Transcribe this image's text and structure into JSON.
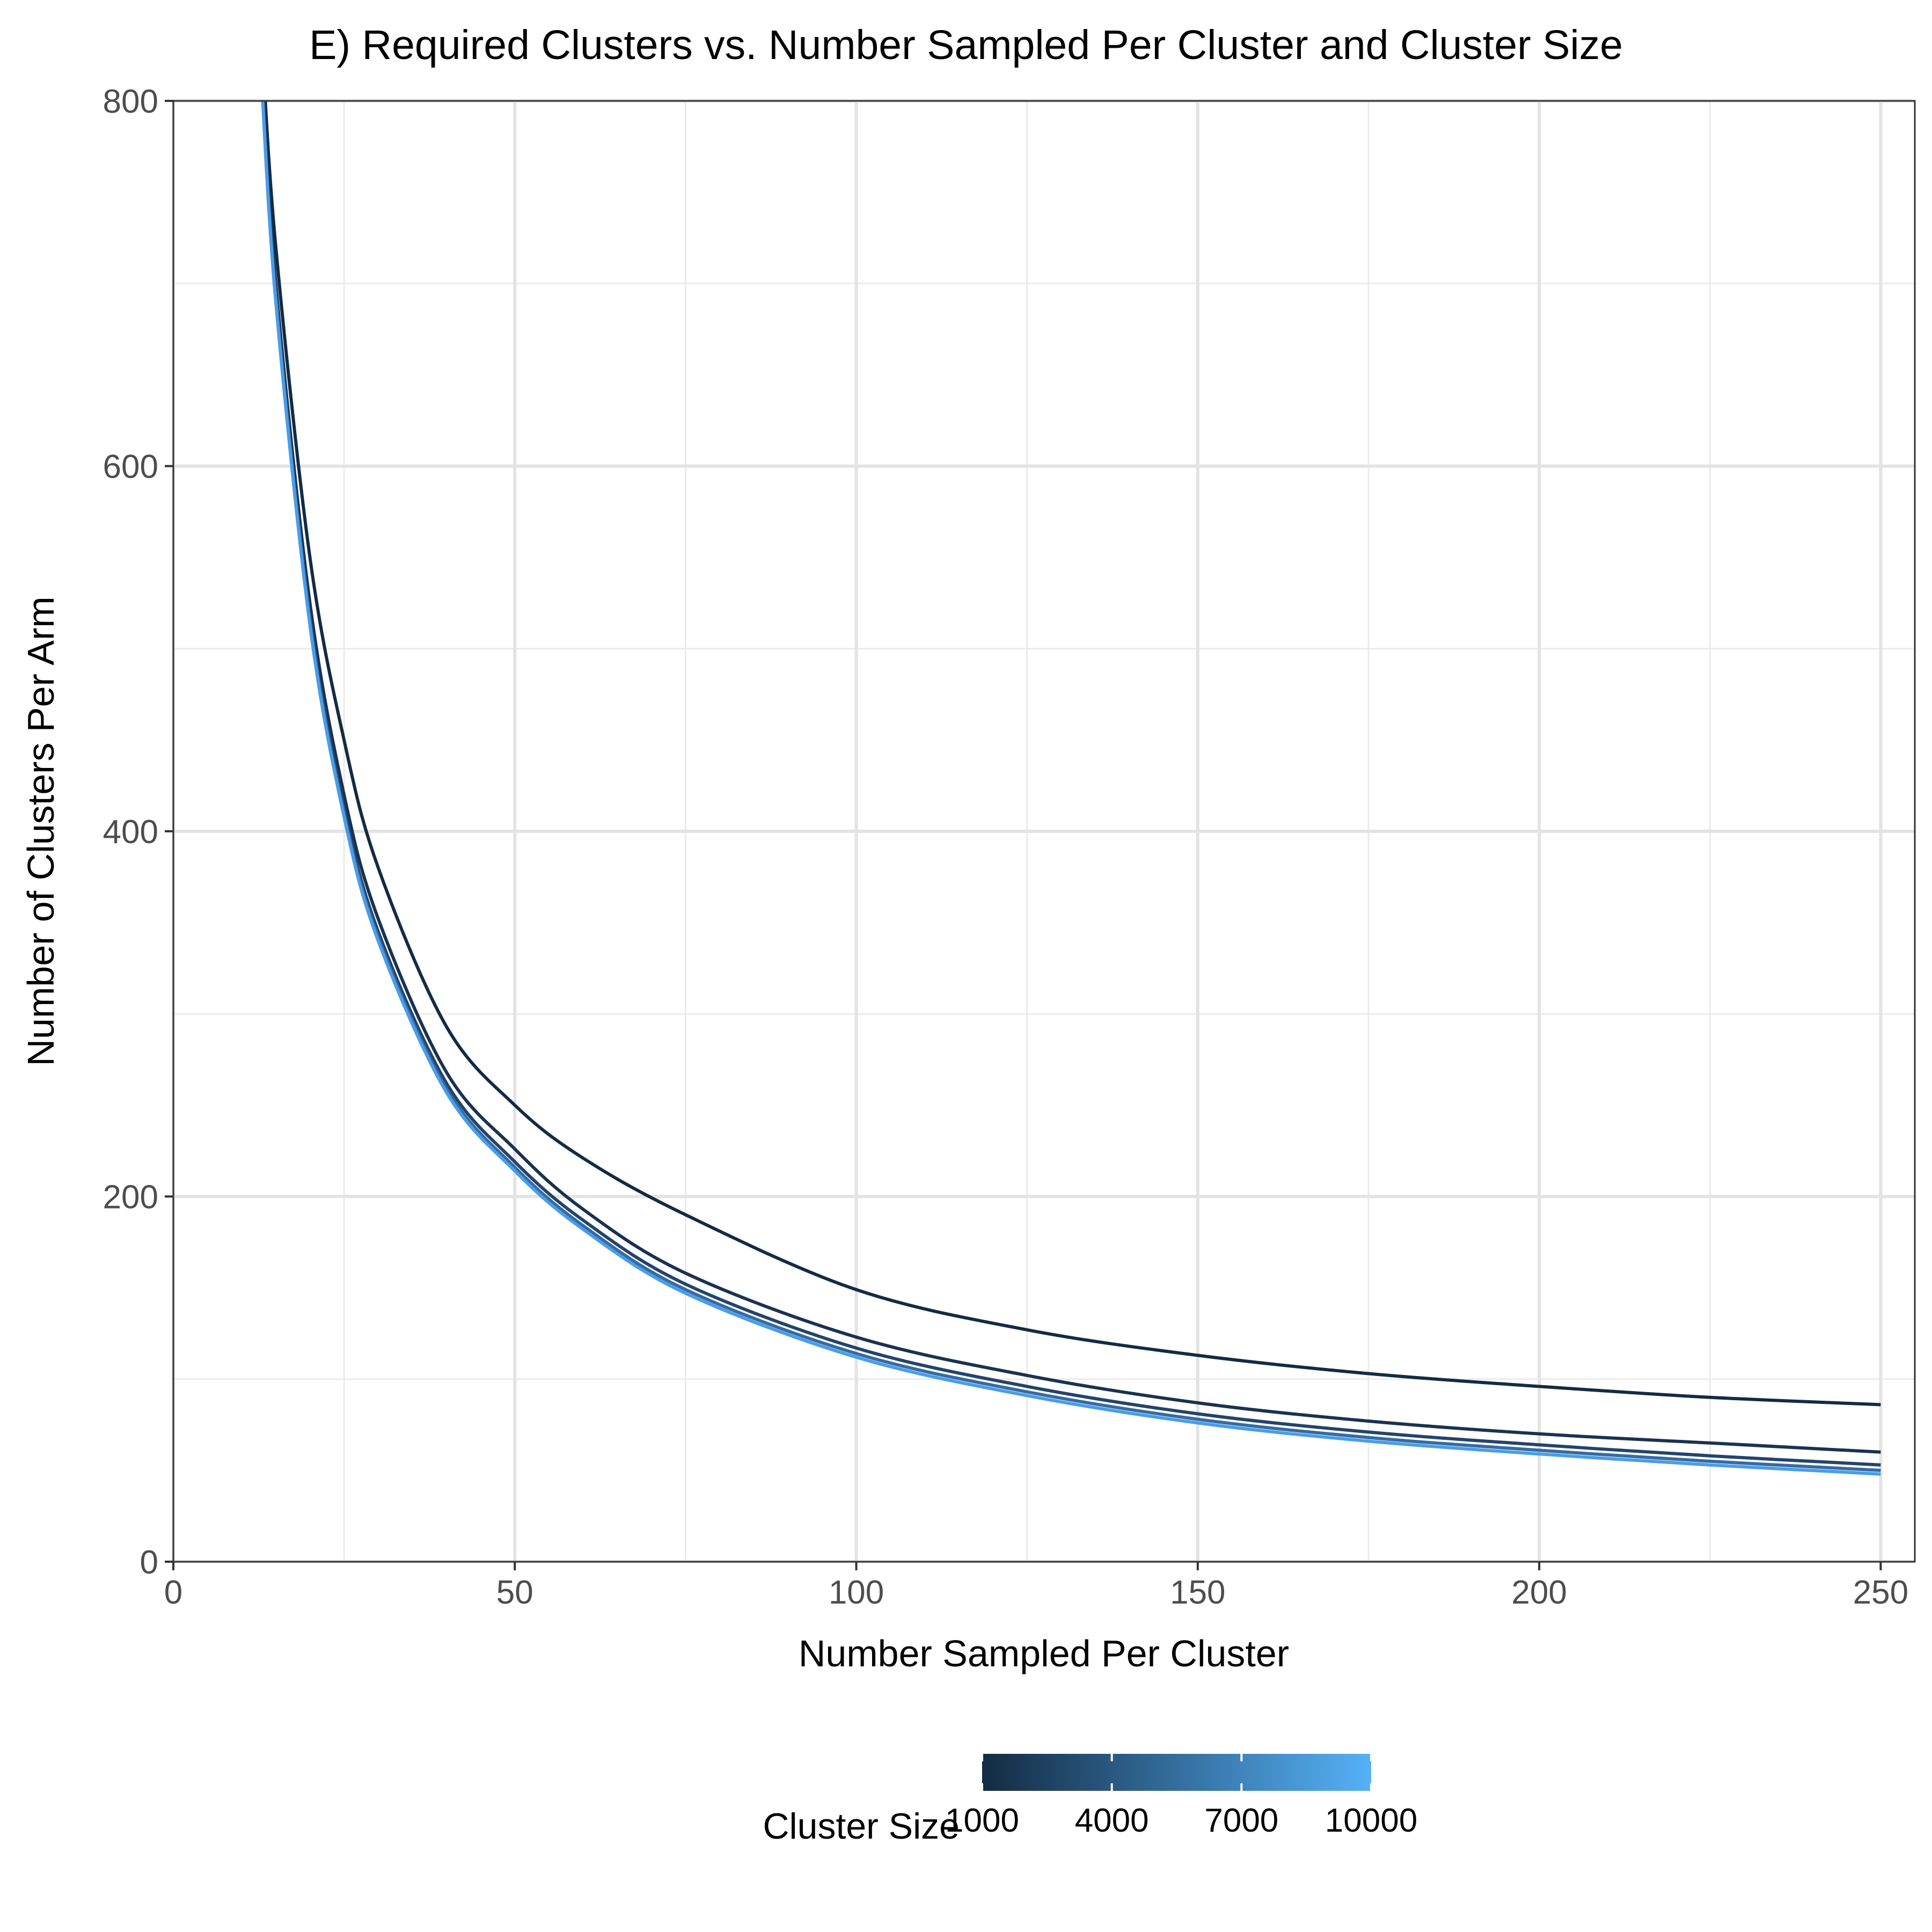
{
  "chart_data": {
    "type": "line",
    "title": "E) Required Clusters vs. Number Sampled Per Cluster and Cluster Size",
    "xlabel": "Number Sampled Per Cluster",
    "ylabel": "Number of Clusters Per Arm",
    "xlim": [
      0,
      255
    ],
    "ylim": [
      0,
      800
    ],
    "x_ticks": [
      0,
      50,
      100,
      150,
      200,
      250
    ],
    "x_tick_labels": [
      "0",
      "50",
      "100",
      "150",
      "200",
      "250"
    ],
    "y_ticks": [
      0,
      200,
      400,
      600,
      800
    ],
    "y_tick_labels": [
      "0",
      "200",
      "400",
      "600",
      "800"
    ],
    "grid": true,
    "legend": {
      "title": "Cluster Size",
      "position": "bottom",
      "type": "colorbar",
      "range": [
        1000,
        10000
      ],
      "breaks": [
        1000,
        4000,
        7000,
        10000
      ],
      "break_labels": [
        "1000",
        "4000",
        "7000",
        "10000"
      ],
      "low_color": "#132B43",
      "high_color": "#56B1F7"
    },
    "series": [
      {
        "cluster_size": 1000,
        "color": "#132B43",
        "x": [
          13,
          15,
          20,
          25,
          30,
          40,
          50,
          60,
          75,
          100,
          125,
          150,
          175,
          200,
          225,
          250
        ],
        "y": [
          830,
          720,
          550,
          450,
          380,
          293,
          250,
          221,
          190,
          149,
          127,
          113,
          103,
          96,
          90,
          86
        ]
      },
      {
        "cluster_size": 2000,
        "color": "#1A3250",
        "x": [
          13,
          15,
          20,
          25,
          30,
          40,
          50,
          60,
          75,
          100,
          125,
          150,
          175,
          200,
          225,
          250
        ],
        "y": [
          815,
          700,
          525,
          420,
          352,
          268,
          226,
          193,
          158,
          123,
          102,
          87,
          77,
          70,
          65,
          60
        ]
      },
      {
        "cluster_size": 4000,
        "color": "#23446A",
        "x": [
          13,
          15,
          20,
          25,
          30,
          40,
          50,
          60,
          75,
          100,
          125,
          150,
          175,
          200,
          225,
          250
        ],
        "y": [
          810,
          695,
          518,
          413,
          345,
          262,
          219,
          187,
          152,
          117,
          96,
          81,
          71,
          64,
          58,
          53
        ]
      },
      {
        "cluster_size": 7000,
        "color": "#346BA3",
        "x": [
          13,
          15,
          20,
          25,
          30,
          40,
          50,
          60,
          75,
          100,
          125,
          150,
          175,
          200,
          225,
          250
        ],
        "y": [
          807,
          692,
          515,
          410,
          342,
          259,
          216,
          184,
          149,
          114,
          93,
          78,
          68,
          61,
          55,
          50
        ]
      },
      {
        "cluster_size": 10000,
        "color": "#4A9DE8",
        "x": [
          13,
          15,
          20,
          25,
          30,
          40,
          50,
          60,
          75,
          100,
          125,
          150,
          175,
          200,
          225,
          250
        ],
        "y": [
          805,
          690,
          513,
          408,
          340,
          257,
          214,
          182,
          147,
          112,
          91,
          76,
          66,
          59,
          53,
          48
        ]
      }
    ]
  }
}
